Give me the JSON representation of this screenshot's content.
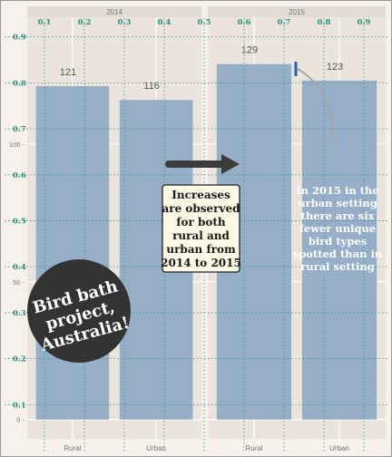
{
  "chart_data": {
    "type": "bar",
    "facets": [
      {
        "label": "2014",
        "categories": [
          "Rural",
          "Urban"
        ],
        "values": [
          121,
          116
        ]
      },
      {
        "label": "2015",
        "categories": [
          "Rural",
          "Urban"
        ],
        "values": [
          129,
          123
        ]
      }
    ],
    "y_left": {
      "range": [
        -7,
        146
      ],
      "ticks": [
        0,
        50,
        100
      ],
      "tick_labels": [
        "0 -",
        "50 -",
        "100 -"
      ]
    },
    "secondary_axes": {
      "x_top": {
        "ticks": [
          0.1,
          0.2,
          0.3,
          0.4,
          0.5,
          0.6,
          0.7,
          0.8,
          0.9
        ]
      },
      "y_left": {
        "ticks": [
          0.1,
          0.2,
          0.3,
          0.4,
          0.5,
          0.6,
          0.7,
          0.8,
          0.9
        ]
      }
    },
    "annotations": [
      {
        "id": "center",
        "lines": [
          "Increases",
          "are observed",
          "for both",
          "rural and",
          "urban from",
          "2014 to 2015"
        ]
      },
      {
        "id": "right",
        "lines": [
          "In 2015 in the",
          "urban setting",
          "there are six",
          "fewer unique",
          "bird types",
          "spotted than in",
          "rural setting"
        ]
      },
      {
        "id": "badge",
        "lines": [
          "Bird bath",
          "project,",
          "Australia!"
        ]
      }
    ],
    "grid": true,
    "colors": {
      "bar": "#97aec8",
      "panel": "#ebe4dc",
      "background": "#f6f1ea",
      "strip": "#e2dcd5",
      "secondary_grid": "#3e9c8c",
      "secondary_text": "#2f8f80",
      "badge": "#333333",
      "arrow": "#3c3c3c",
      "bracket": "#2f5fb3"
    }
  }
}
